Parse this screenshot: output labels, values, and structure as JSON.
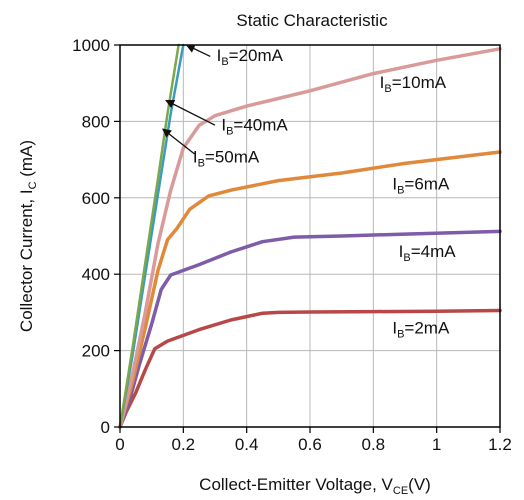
{
  "chart_data": {
    "type": "line",
    "title": "Static  Characteristic",
    "xlabel": {
      "main": "Collect-Emitter Voltage, V",
      "sub": "CE",
      "unit": "(V)"
    },
    "ylabel": {
      "main": "Collector Current, I",
      "sub": "C",
      "unit": " (mA)"
    },
    "xlim": [
      0,
      1.2
    ],
    "ylim": [
      0,
      1000
    ],
    "x_ticks": [
      0,
      0.2,
      0.4,
      0.6,
      0.8,
      1,
      1.2
    ],
    "x_tick_labels": [
      "0",
      "0.2",
      "0.4",
      "0.6",
      "0.8",
      "1",
      "1.2"
    ],
    "y_ticks": [
      0,
      200,
      400,
      600,
      800,
      1000
    ],
    "y_tick_labels": [
      "0",
      "200",
      "400",
      "600",
      "800",
      "1000"
    ],
    "grid": true,
    "series": [
      {
        "key": "ib2",
        "color": "#b84848",
        "width": 3.5,
        "label_main": "I",
        "label_sub": "B",
        "label_rest": "=2mA",
        "label_anchor": [
          0.86,
          245
        ],
        "x": [
          0,
          0.02,
          0.05,
          0.08,
          0.11,
          0.15,
          0.25,
          0.35,
          0.45,
          0.5,
          0.6,
          0.8,
          1.0,
          1.2
        ],
        "y": [
          0,
          40,
          90,
          150,
          205,
          225,
          255,
          280,
          298,
          300,
          301,
          302,
          303,
          305
        ]
      },
      {
        "key": "ib4",
        "color": "#7e5ca8",
        "width": 3.5,
        "label_main": "I",
        "label_sub": "B",
        "label_rest": "=4mA",
        "label_anchor": [
          0.88,
          445
        ],
        "x": [
          0,
          0.03,
          0.06,
          0.1,
          0.13,
          0.16,
          0.25,
          0.35,
          0.45,
          0.55,
          0.7,
          0.9,
          1.2
        ],
        "y": [
          0,
          70,
          160,
          270,
          360,
          398,
          425,
          458,
          485,
          497,
          500,
          505,
          512
        ]
      },
      {
        "key": "ib6",
        "color": "#e0893a",
        "width": 3.5,
        "label_main": "I",
        "label_sub": "B",
        "label_rest": "=6mA",
        "label_anchor": [
          0.86,
          622
        ],
        "x": [
          0,
          0.04,
          0.08,
          0.12,
          0.15,
          0.18,
          0.22,
          0.28,
          0.35,
          0.5,
          0.7,
          0.9,
          1.2
        ],
        "y": [
          0,
          120,
          260,
          410,
          490,
          520,
          570,
          605,
          620,
          645,
          665,
          690,
          720
        ]
      },
      {
        "key": "ib10",
        "color": "#d99a9a",
        "width": 3.5,
        "label_main": "I",
        "label_sub": "B",
        "label_rest": "=10mA",
        "label_anchor": [
          0.82,
          887
        ],
        "x": [
          0,
          0.04,
          0.08,
          0.12,
          0.16,
          0.2,
          0.25,
          0.3,
          0.4,
          0.5,
          0.6,
          0.8,
          1.0,
          1.2
        ],
        "y": [
          0,
          140,
          300,
          480,
          620,
          730,
          790,
          815,
          840,
          860,
          880,
          925,
          960,
          990
        ]
      },
      {
        "key": "ib40",
        "color": "#3a9ac0",
        "width": 2.5,
        "label_main": "I",
        "label_sub": "B",
        "label_rest": "=40mA",
        "label_anchor": [
          0.32,
          776
        ],
        "x": [
          0,
          0.04,
          0.08,
          0.12,
          0.16,
          0.2
        ],
        "y": [
          0,
          190,
          400,
          610,
          820,
          1000
        ]
      },
      {
        "key": "ib50",
        "color": "#7aa84a",
        "width": 2.5,
        "label_main": "I",
        "label_sub": "B",
        "label_rest": "=50mA",
        "label_anchor": [
          0.23,
          693
        ],
        "x": [
          0,
          0.04,
          0.08,
          0.12,
          0.15,
          0.185
        ],
        "y": [
          0,
          210,
          430,
          650,
          820,
          1000
        ]
      }
    ],
    "annotations": [
      {
        "key": "ann20",
        "main": "I",
        "sub": "B",
        "rest": "=20mA",
        "text_at": [
          0.305,
          958
        ],
        "arrow_from": [
          0.285,
          970
        ],
        "arrow_to": [
          0.21,
          1000
        ]
      },
      {
        "key": "ann40",
        "main": "I",
        "sub": "B",
        "rest": "=40mA",
        "text_at": [
          0.32,
          776
        ],
        "arrow_from": [
          0.3,
          790
        ],
        "arrow_to": [
          0.145,
          855
        ]
      },
      {
        "key": "ann50",
        "main": "I",
        "sub": "B",
        "rest": "=50mA",
        "text_at": [
          0.23,
          693
        ],
        "arrow_from": [
          0.235,
          715
        ],
        "arrow_to": [
          0.135,
          780
        ]
      }
    ]
  }
}
